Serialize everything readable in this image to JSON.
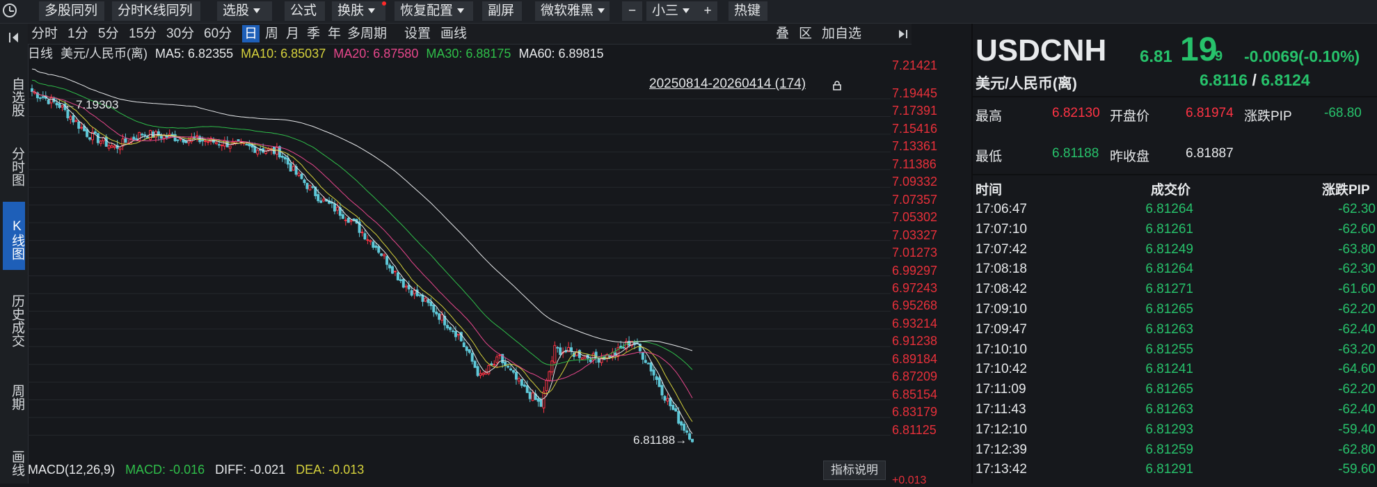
{
  "toolbar": {
    "items": [
      {
        "label": "多股同列",
        "arrow": false
      },
      {
        "label": "分时K线同列",
        "arrow": false
      },
      {
        "label": "选股",
        "arrow": true
      },
      {
        "label": "公式",
        "arrow": false
      },
      {
        "label": "换肤",
        "arrow": true
      },
      {
        "label": "恢复配置",
        "arrow": true
      },
      {
        "label": "副屏",
        "arrow": false
      },
      {
        "label": "微软雅黑",
        "arrow": true
      },
      {
        "label": "−",
        "arrow": false
      },
      {
        "label": "小三",
        "arrow": true
      },
      {
        "label": "+",
        "arrow": false
      },
      {
        "label": "热键",
        "arrow": false
      }
    ]
  },
  "sidebar": {
    "items": [
      "自选股",
      "分时图",
      "K线图",
      "历史成交",
      "周期",
      "画线"
    ],
    "active_index": 2
  },
  "chart_toolbar": {
    "periods": [
      "分时",
      "1分",
      "5分",
      "15分",
      "30分",
      "60分",
      "日",
      "周",
      "月",
      "季",
      "年",
      "多周期",
      "设置",
      "画线"
    ],
    "active_period": "日",
    "right_items": [
      "叠",
      "区",
      "加自选"
    ]
  },
  "legend": {
    "period": "日线",
    "pair": "美元/人民币(离)",
    "ma5": "MA5: 6.82355",
    "ma10": "MA10: 6.85037",
    "ma20": "MA20: 6.87580",
    "ma30": "MA30: 6.88175",
    "ma60": "MA60: 6.89815"
  },
  "range_text": "20250814-20260414 (174)",
  "annotations": {
    "high": "7.19303",
    "low": "6.81188"
  },
  "price_axis": [
    "7.21421",
    "7.19445",
    "7.17391",
    "7.15416",
    "7.13361",
    "7.11386",
    "7.09332",
    "7.07357",
    "7.05302",
    "7.03327",
    "7.01273",
    "6.99297",
    "6.97243",
    "6.95268",
    "6.93214",
    "6.91238",
    "6.89184",
    "6.87209",
    "6.85154",
    "6.83179",
    "6.81125"
  ],
  "macd": {
    "name": "MACD(12,26,9)",
    "macd": "MACD: -0.016",
    "diff": "DIFF: -0.021",
    "dea": "DEA: -0.013",
    "button": "指标说明",
    "axis_top": "+0.013"
  },
  "quote": {
    "symbol": "USDCNH",
    "price_main": "6.81",
    "price_big": "19",
    "price_small": "9",
    "change": "-0.0069(-0.10%)",
    "name": "美元/人民币(离)",
    "bid": "6.8116",
    "slash": "/",
    "ask": "6.8124",
    "high_label": "最高",
    "high_value": "6.82130",
    "open_label": "开盘价",
    "open_value": "6.81974",
    "pip_label": "涨跌PIP",
    "pip_value": "-68.80",
    "low_label": "最低",
    "low_value": "6.81188",
    "prev_label": "昨收盘",
    "prev_value": "6.81887"
  },
  "ticks": {
    "headers": [
      "时间",
      "成交价",
      "涨跌PIP"
    ],
    "rows": [
      {
        "time": "17:06:47",
        "price": "6.81264",
        "pip": "-62.30"
      },
      {
        "time": "17:07:10",
        "price": "6.81261",
        "pip": "-62.60"
      },
      {
        "time": "17:07:42",
        "price": "6.81249",
        "pip": "-63.80"
      },
      {
        "time": "17:08:18",
        "price": "6.81264",
        "pip": "-62.30"
      },
      {
        "time": "17:08:42",
        "price": "6.81271",
        "pip": "-61.60"
      },
      {
        "time": "17:09:10",
        "price": "6.81265",
        "pip": "-62.20"
      },
      {
        "time": "17:09:47",
        "price": "6.81263",
        "pip": "-62.40"
      },
      {
        "time": "17:10:10",
        "price": "6.81255",
        "pip": "-63.20"
      },
      {
        "time": "17:10:42",
        "price": "6.81241",
        "pip": "-64.60"
      },
      {
        "time": "17:11:09",
        "price": "6.81265",
        "pip": "-62.20"
      },
      {
        "time": "17:11:43",
        "price": "6.81263",
        "pip": "-62.40"
      },
      {
        "time": "17:12:10",
        "price": "6.81293",
        "pip": "-59.40"
      },
      {
        "time": "17:12:39",
        "price": "6.81259",
        "pip": "-62.80"
      },
      {
        "time": "17:13:42",
        "price": "6.81291",
        "pip": "-59.60"
      }
    ]
  },
  "colors": {
    "up": "#ff3344",
    "down": "#5ec8d8",
    "green": "#27c26b",
    "ma5": "#e8eaec",
    "ma10": "#d6d23c",
    "ma20": "#e8478c",
    "ma30": "#2fbf4a",
    "ma60": "#e8eaec",
    "active": "#1e5fb8"
  }
}
